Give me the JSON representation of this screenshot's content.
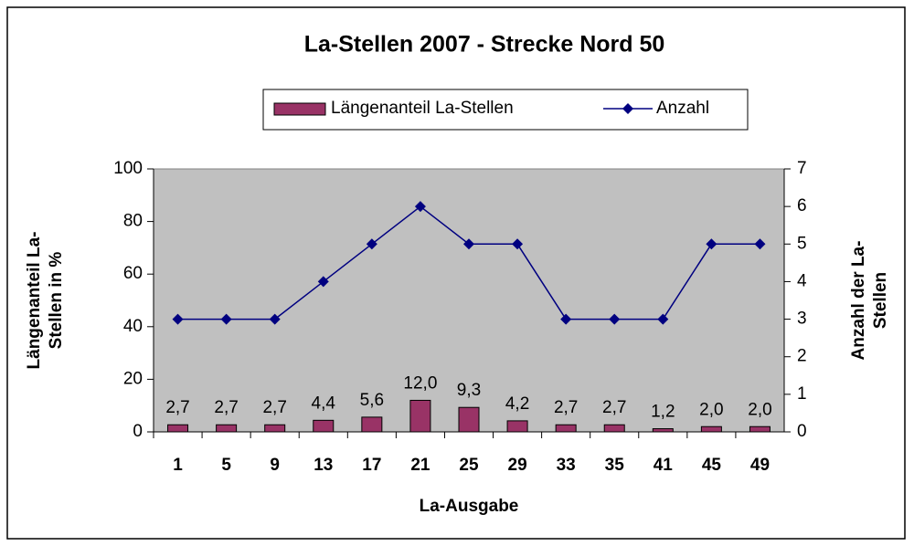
{
  "chart_data": {
    "type": "bar",
    "title": "La-Stellen 2007 - Strecke Nord 50",
    "xlabel": "La-Ausgabe",
    "ylabel": [
      "Längenanteil La-",
      "Stellen in %"
    ],
    "y2label": [
      "Anzahl der La-",
      "Stellen"
    ],
    "categories": [
      "1",
      "5",
      "9",
      "13",
      "17",
      "21",
      "25",
      "29",
      "33",
      "35",
      "41",
      "45",
      "49"
    ],
    "series": [
      {
        "name": "Längenanteil La-Stellen",
        "type": "bar",
        "color": "#993366",
        "values": [
          2.7,
          2.7,
          2.7,
          4.4,
          5.6,
          12.0,
          9.3,
          4.2,
          2.7,
          2.7,
          1.2,
          2.0,
          2.0
        ],
        "value_labels": [
          "2,7",
          "2,7",
          "2,7",
          "4,4",
          "5,6",
          "12,0",
          "9,3",
          "4,2",
          "2,7",
          "2,7",
          "1,2",
          "2,0",
          "2,0"
        ]
      },
      {
        "name": "Anzahl",
        "type": "line",
        "axis": "y2",
        "color": "#000080",
        "values": [
          3,
          3,
          3,
          4,
          5,
          6,
          5,
          5,
          3,
          3,
          3,
          5,
          5
        ]
      }
    ],
    "ylim": [
      0,
      100
    ],
    "yticks": [
      0,
      20,
      40,
      60,
      80,
      100
    ],
    "y2lim": [
      0,
      7
    ],
    "y2ticks": [
      0,
      1,
      2,
      3,
      4,
      5,
      6,
      7
    ],
    "grid": false,
    "plot_background": "#c0c0c0",
    "legend": "top"
  }
}
